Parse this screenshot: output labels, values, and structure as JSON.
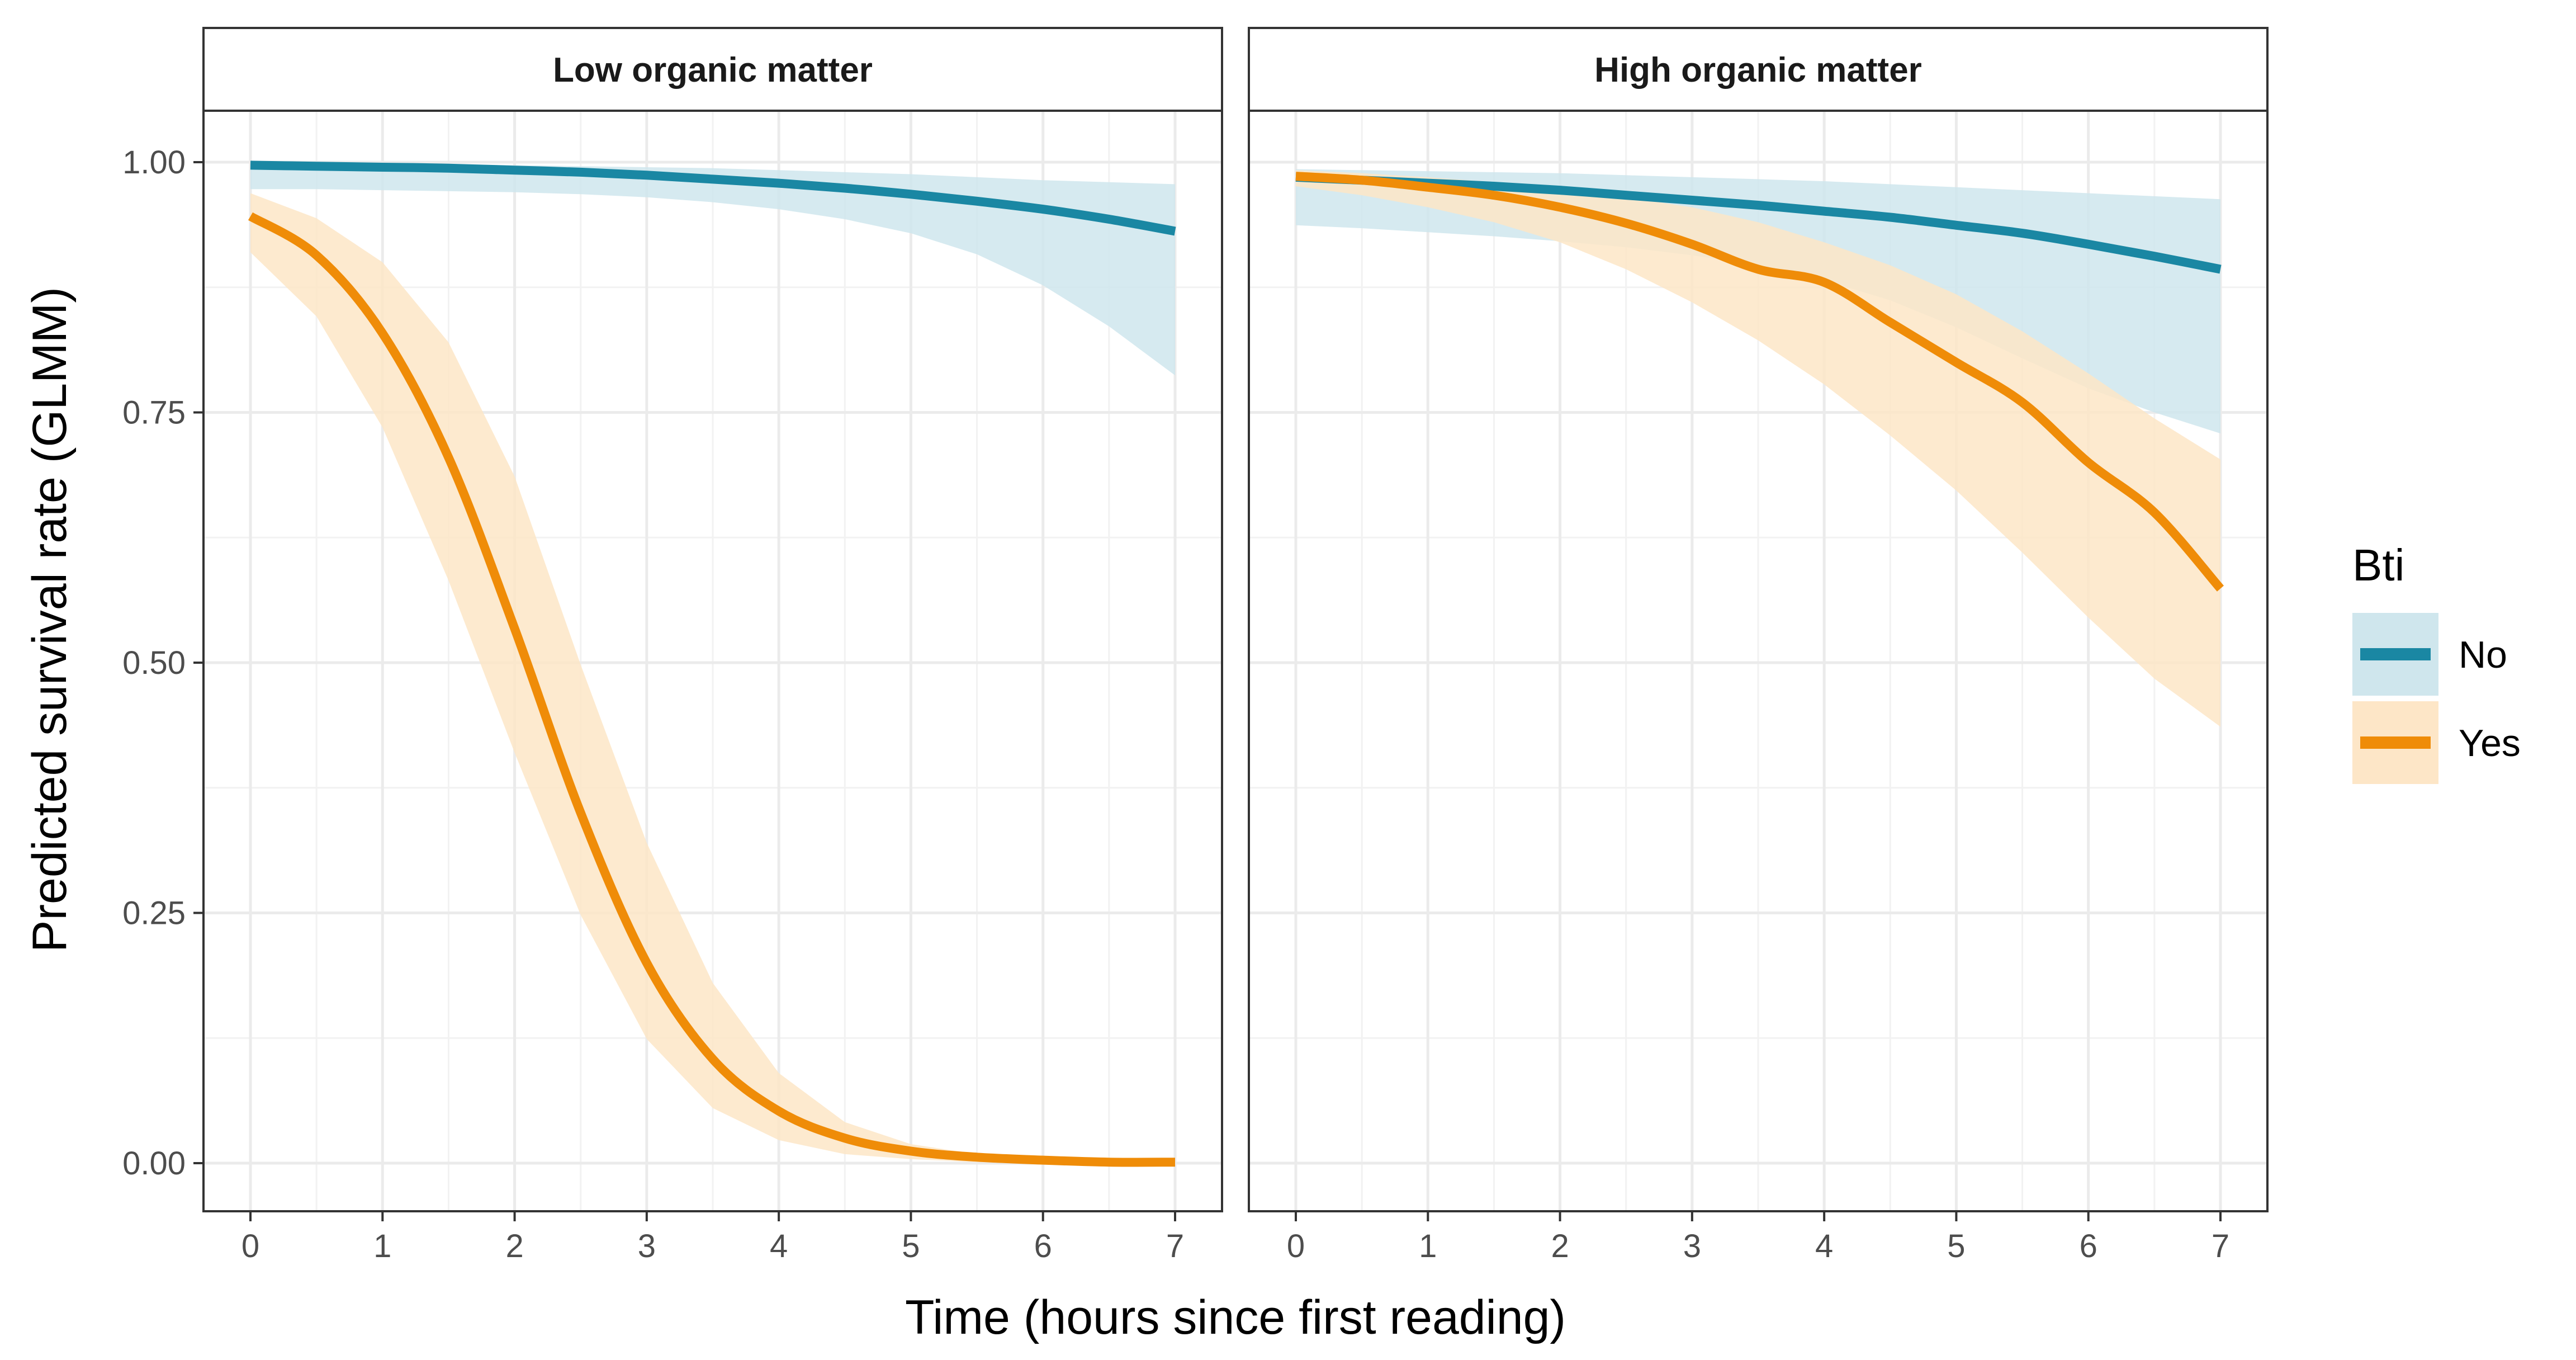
{
  "chart_data": {
    "type": "line",
    "ylabel": "Predicted survival rate (GLMM)",
    "xlabel": "Time (hours since first reading)",
    "xlim": [
      0,
      7
    ],
    "ylim": [
      0,
      1
    ],
    "x_ticks": [
      0,
      1,
      2,
      3,
      4,
      5,
      6,
      7
    ],
    "y_ticks": [
      0,
      0.25,
      0.5,
      0.75,
      1
    ],
    "y_tick_labels": [
      "0.00",
      "0.25",
      "0.50",
      "0.75",
      "1.00"
    ],
    "grid": true,
    "confidence_bands": true,
    "legend": {
      "title": "Bti",
      "position": "right",
      "entries": [
        {
          "name": "No",
          "color": "#1a87a3",
          "fill": "#cfe6ed"
        },
        {
          "name": "Yes",
          "color": "#ef8c08",
          "fill": "#fde6c7"
        }
      ]
    },
    "panels": [
      {
        "title": "Low organic matter",
        "x": [
          0,
          0.5,
          1,
          1.5,
          2,
          2.5,
          3,
          3.5,
          4,
          4.5,
          5,
          5.5,
          6,
          6.5,
          7
        ],
        "series": [
          {
            "name": "No",
            "values": [
              0.997,
              0.996,
              0.995,
              0.994,
              0.992,
              0.99,
              0.987,
              0.983,
              0.979,
              0.974,
              0.968,
              0.961,
              0.953,
              0.943,
              0.931
            ],
            "lower": [
              0.973,
              0.973,
              0.972,
              0.971,
              0.97,
              0.968,
              0.965,
              0.96,
              0.953,
              0.943,
              0.929,
              0.908,
              0.877,
              0.836,
              0.787
            ],
            "upper": [
              0.999,
              0.999,
              0.999,
              0.998,
              0.997,
              0.996,
              0.995,
              0.994,
              0.992,
              0.99,
              0.988,
              0.985,
              0.982,
              0.98,
              0.978
            ]
          },
          {
            "name": "Yes",
            "values": [
              0.946,
              0.907,
              0.829,
              0.705,
              0.534,
              0.35,
              0.2,
              0.104,
              0.052,
              0.025,
              0.012,
              0.006,
              0.003,
              0.001,
              0.001
            ],
            "lower": [
              0.91,
              0.846,
              0.735,
              0.582,
              0.41,
              0.248,
              0.124,
              0.055,
              0.023,
              0.009,
              0.004,
              0.001,
              0.0,
              0.0,
              0.0
            ],
            "upper": [
              0.969,
              0.944,
              0.9,
              0.82,
              0.686,
              0.498,
              0.32,
              0.18,
              0.09,
              0.041,
              0.019,
              0.009,
              0.004,
              0.002,
              0.001
            ]
          }
        ]
      },
      {
        "title": "High organic matter",
        "x": [
          0,
          0.5,
          1,
          1.5,
          2,
          2.5,
          3,
          3.5,
          4,
          4.5,
          5,
          5.5,
          6,
          6.5,
          7
        ],
        "series": [
          {
            "name": "No",
            "values": [
              0.985,
              0.982,
              0.979,
              0.976,
              0.972,
              0.967,
              0.962,
              0.957,
              0.951,
              0.945,
              0.937,
              0.929,
              0.918,
              0.906,
              0.893
            ],
            "lower": [
              0.937,
              0.934,
              0.93,
              0.926,
              0.921,
              0.915,
              0.907,
              0.897,
              0.882,
              0.862,
              0.835,
              0.804,
              0.774,
              0.75,
              0.729
            ],
            "upper": [
              0.993,
              0.992,
              0.991,
              0.99,
              0.989,
              0.987,
              0.985,
              0.983,
              0.981,
              0.978,
              0.975,
              0.972,
              0.969,
              0.966,
              0.963
            ]
          },
          {
            "name": "Yes",
            "values": [
              0.986,
              0.982,
              0.975,
              0.967,
              0.955,
              0.939,
              0.918,
              0.893,
              0.88,
              0.84,
              0.8,
              0.76,
              0.7,
              0.65,
              0.574
            ],
            "lower": [
              0.976,
              0.967,
              0.955,
              0.94,
              0.92,
              0.893,
              0.86,
              0.822,
              0.778,
              0.727,
              0.672,
              0.61,
              0.545,
              0.484,
              0.436
            ],
            "upper": [
              0.992,
              0.989,
              0.985,
              0.98,
              0.973,
              0.965,
              0.955,
              0.94,
              0.92,
              0.897,
              0.868,
              0.831,
              0.789,
              0.744,
              0.703
            ]
          }
        ]
      }
    ]
  }
}
